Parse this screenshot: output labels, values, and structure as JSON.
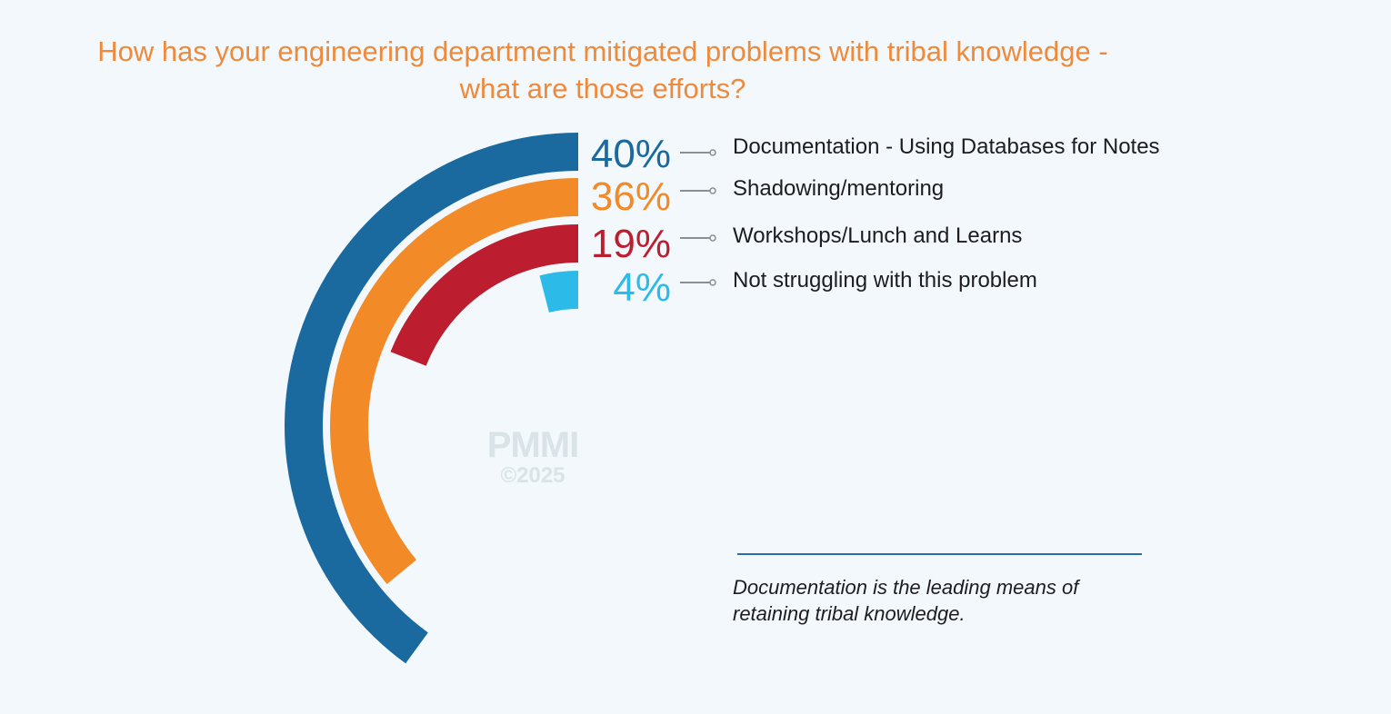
{
  "title": "How has your engineering department mitigated problems with tribal knowledge -",
  "subtitle": "what are those efforts?",
  "chart_data": {
    "type": "radial_bar",
    "categories": [
      "Documentation - Using Databases for Notes",
      "Shadowing/mentoring",
      "Workshops/Lunch and Learns",
      "Not struggling with this problem"
    ],
    "values": [
      40,
      36,
      19,
      4
    ],
    "value_labels": [
      "40%",
      "36%",
      "19%",
      "4%"
    ],
    "unit": "%",
    "max": 100,
    "colors": [
      "#1a6aa0",
      "#f28a28",
      "#bd1e2f",
      "#2cbbe8"
    ],
    "legend": "right"
  },
  "note": "Documentation is the leading means of retaining tribal knowledge.",
  "watermark": {
    "logo": "PMMI",
    "copyright": "©2025"
  }
}
